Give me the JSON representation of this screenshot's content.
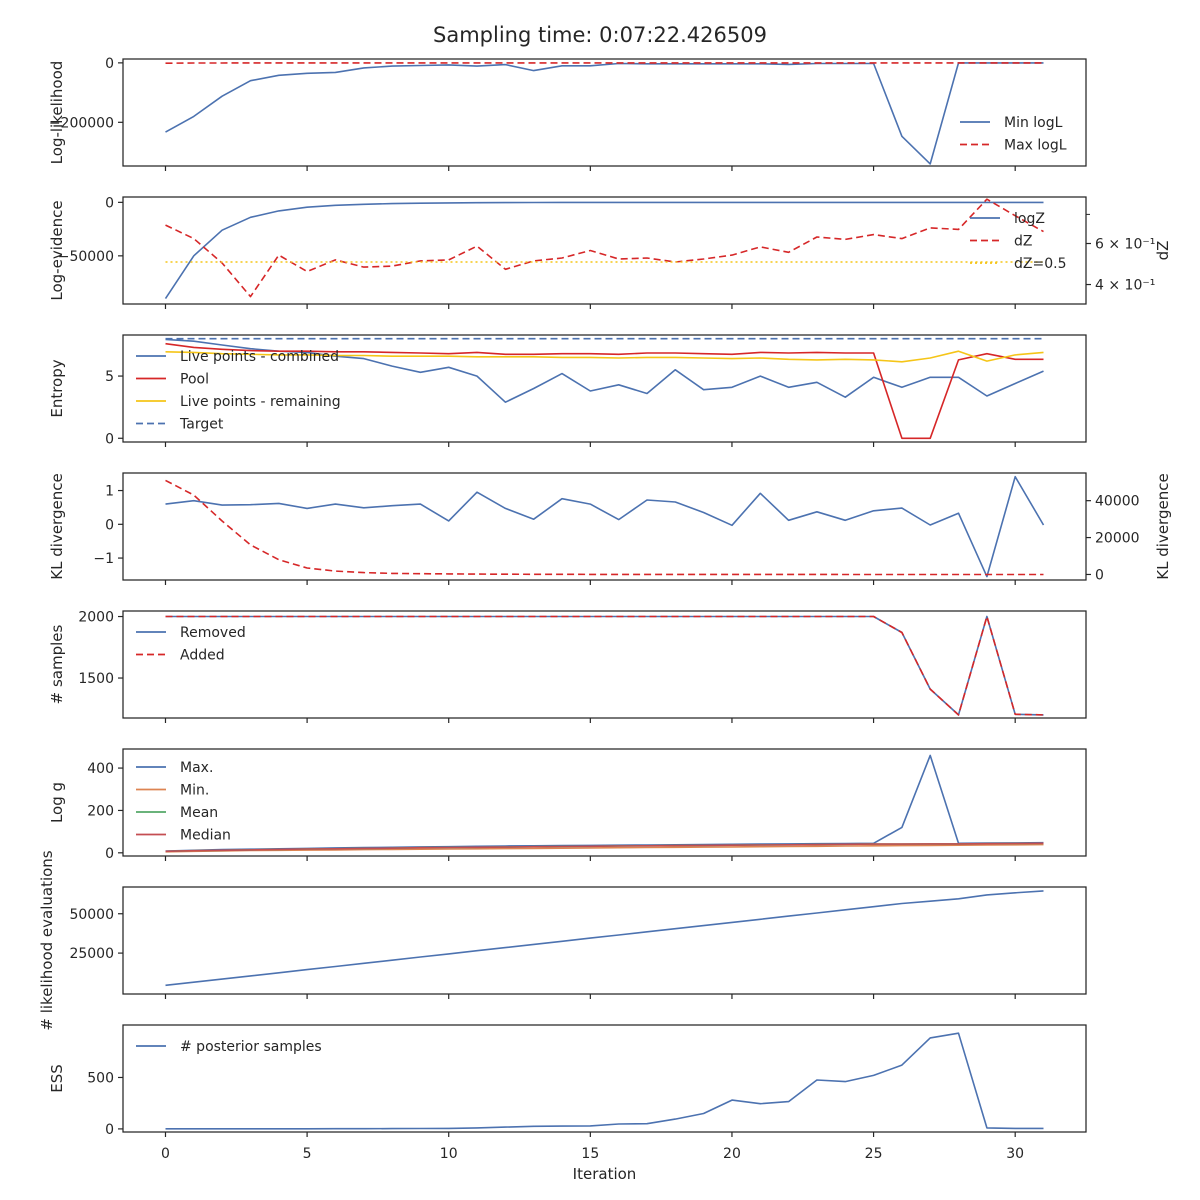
{
  "figure": {
    "title": "Sampling time: 0:07:22.426509",
    "xlabel": "Iteration"
  },
  "chart_data": [
    {
      "type": "line",
      "ylabel": "Log-likelihood",
      "ylim": [
        -347000,
        13000
      ],
      "yticks": [
        0,
        -200000
      ],
      "ytick_labels": [
        "0",
        "−200000"
      ],
      "legend_position": "lower-right",
      "x": [
        0,
        1,
        2,
        3,
        4,
        5,
        6,
        7,
        8,
        9,
        10,
        11,
        12,
        13,
        14,
        15,
        16,
        17,
        18,
        19,
        20,
        21,
        22,
        23,
        24,
        25,
        26,
        27,
        28,
        29,
        30,
        31
      ],
      "series": [
        {
          "name": "Min logL",
          "color": "#4c72b0",
          "dash": "solid",
          "values": [
            -233000,
            -180000,
            -112000,
            -60000,
            -42000,
            -35000,
            -32000,
            -17000,
            -11000,
            -9000,
            -7000,
            -11000,
            -6000,
            -26000,
            -10000,
            -10000,
            -2000,
            -3000,
            -3000,
            -3000,
            -3000,
            -3000,
            -5000,
            -2000,
            -2000,
            -2000,
            -247000,
            -340000,
            0,
            0,
            0,
            0
          ]
        },
        {
          "name": "Max logL",
          "color": "#d62728",
          "dash": "dashed",
          "values": [
            -1000,
            -500,
            -500,
            0,
            0,
            0,
            0,
            0,
            0,
            0,
            0,
            0,
            0,
            0,
            0,
            0,
            0,
            0,
            0,
            0,
            0,
            0,
            0,
            0,
            0,
            0,
            0,
            0,
            0,
            0,
            0,
            0
          ]
        }
      ]
    },
    {
      "type": "line",
      "ylabel": "Log-evidence",
      "ylabel_right": "dZ",
      "ylim": [
        -95000,
        5000
      ],
      "yticks": [
        0,
        -50000
      ],
      "ytick_labels": [
        "0",
        "−50000"
      ],
      "yscale_right": "log",
      "ylim_right": [
        0.33,
        0.95
      ],
      "yticks_right": [
        0.6,
        0.4
      ],
      "ytick_labels_right": [
        "6 × 10⁻¹",
        "4 × 10⁻¹"
      ],
      "legend_position": "upper-right",
      "x": [
        0,
        1,
        2,
        3,
        4,
        5,
        6,
        7,
        8,
        9,
        10,
        11,
        12,
        13,
        14,
        15,
        16,
        17,
        18,
        19,
        20,
        21,
        22,
        23,
        24,
        25,
        26,
        27,
        28,
        29,
        30,
        31
      ],
      "series": [
        {
          "name": "logZ",
          "axis": "left",
          "color": "#4c72b0",
          "dash": "solid",
          "values": [
            -90000,
            -50000,
            -26000,
            -14000,
            -8000,
            -4500,
            -2800,
            -1800,
            -1200,
            -800,
            -500,
            -300,
            -200,
            -100,
            -60,
            -40,
            -20,
            -10,
            0,
            0,
            0,
            0,
            0,
            0,
            0,
            0,
            0,
            0,
            0,
            0,
            0,
            0
          ]
        },
        {
          "name": "dZ",
          "axis": "right",
          "color": "#d62728",
          "dash": "dashed",
          "values": [
            0.72,
            0.63,
            0.495,
            0.355,
            0.535,
            0.455,
            0.51,
            0.475,
            0.48,
            0.505,
            0.51,
            0.585,
            0.465,
            0.505,
            0.52,
            0.56,
            0.515,
            0.52,
            0.5,
            0.515,
            0.535,
            0.58,
            0.55,
            0.64,
            0.625,
            0.655,
            0.63,
            0.7,
            0.69,
            0.93,
            0.79,
            0.675
          ]
        },
        {
          "name": "dZ=0.5",
          "axis": "right",
          "color": "#f5c518",
          "dash": "dotted",
          "values": [
            0.5,
            0.5,
            0.5,
            0.5,
            0.5,
            0.5,
            0.5,
            0.5,
            0.5,
            0.5,
            0.5,
            0.5,
            0.5,
            0.5,
            0.5,
            0.5,
            0.5,
            0.5,
            0.5,
            0.5,
            0.5,
            0.5,
            0.5,
            0.5,
            0.5,
            0.5,
            0.5,
            0.5,
            0.5,
            0.5,
            0.5,
            0.5
          ]
        }
      ]
    },
    {
      "type": "line",
      "ylabel": "Entropy",
      "ylim": [
        -0.3,
        8.3
      ],
      "yticks": [
        5,
        0
      ],
      "ytick_labels": [
        "5",
        "0"
      ],
      "legend_position": "upper-left",
      "x": [
        0,
        1,
        2,
        3,
        4,
        5,
        6,
        7,
        8,
        9,
        10,
        11,
        12,
        13,
        14,
        15,
        16,
        17,
        18,
        19,
        20,
        21,
        22,
        23,
        24,
        25,
        26,
        27,
        28,
        29,
        30,
        31
      ],
      "series": [
        {
          "name": "Live points - combined",
          "color": "#4c72b0",
          "dash": "solid",
          "values": [
            7.95,
            7.8,
            7.5,
            7.2,
            7.0,
            6.9,
            6.6,
            6.4,
            5.8,
            5.3,
            5.7,
            5.0,
            2.9,
            4.0,
            5.2,
            3.8,
            4.3,
            3.6,
            5.5,
            3.9,
            4.1,
            5.0,
            4.1,
            4.5,
            3.3,
            4.9,
            4.1,
            4.9,
            4.9,
            3.4,
            4.4,
            5.4
          ]
        },
        {
          "name": "Pool",
          "color": "#d62728",
          "dash": "solid",
          "values": [
            7.6,
            7.3,
            7.15,
            7.05,
            7.0,
            7.0,
            6.95,
            6.95,
            6.9,
            6.85,
            6.8,
            6.9,
            6.75,
            6.75,
            6.8,
            6.8,
            6.75,
            6.85,
            6.85,
            6.8,
            6.75,
            6.9,
            6.85,
            6.9,
            6.85,
            6.85,
            0.0,
            0.0,
            6.3,
            6.8,
            6.35,
            6.35
          ]
        },
        {
          "name": "Live points - remaining",
          "color": "#f5c518",
          "dash": "solid",
          "values": [
            6.95,
            6.9,
            6.8,
            6.75,
            6.7,
            6.7,
            6.65,
            6.65,
            6.6,
            6.6,
            6.6,
            6.55,
            6.55,
            6.55,
            6.5,
            6.5,
            6.45,
            6.5,
            6.5,
            6.45,
            6.4,
            6.45,
            6.35,
            6.3,
            6.35,
            6.3,
            6.15,
            6.45,
            7.0,
            6.2,
            6.7,
            6.9
          ]
        },
        {
          "name": "Target",
          "color": "#4c72b0",
          "dash": "dashed",
          "values": [
            8.0,
            8.0,
            8.0,
            8.0,
            8.0,
            8.0,
            8.0,
            8.0,
            8.0,
            8.0,
            8.0,
            8.0,
            8.0,
            8.0,
            8.0,
            8.0,
            8.0,
            8.0,
            8.0,
            8.0,
            8.0,
            8.0,
            8.0,
            8.0,
            8.0,
            8.0,
            8.0,
            8.0,
            8.0,
            8.0,
            8.0,
            8.0
          ]
        }
      ]
    },
    {
      "type": "line",
      "ylabel": "KL divergence",
      "ylabel_right": "KL divergence",
      "ylim": [
        -1.65,
        1.52
      ],
      "yticks": [
        1,
        0,
        -1
      ],
      "ytick_labels": [
        "1",
        "0",
        "−1"
      ],
      "ylim_right": [
        -3000,
        55000
      ],
      "yticks_right": [
        40000,
        20000,
        0
      ],
      "ytick_labels_right": [
        "40000",
        "20000",
        "0"
      ],
      "x": [
        0,
        1,
        2,
        3,
        4,
        5,
        6,
        7,
        8,
        9,
        10,
        11,
        12,
        13,
        14,
        15,
        16,
        17,
        18,
        19,
        20,
        21,
        22,
        23,
        24,
        25,
        26,
        27,
        28,
        29,
        30,
        31
      ],
      "series": [
        {
          "name": "",
          "axis": "left",
          "color": "#4c72b0",
          "dash": "solid",
          "values": [
            0.6,
            0.7,
            0.57,
            0.58,
            0.62,
            0.47,
            0.6,
            0.49,
            0.55,
            0.6,
            0.1,
            0.95,
            0.47,
            0.15,
            0.76,
            0.6,
            0.14,
            0.72,
            0.66,
            0.35,
            -0.03,
            0.92,
            0.12,
            0.37,
            0.12,
            0.4,
            0.48,
            -0.02,
            0.33,
            -1.55,
            1.41,
            -0.02
          ]
        },
        {
          "name": "",
          "axis": "right",
          "color": "#d62728",
          "dash": "dashed",
          "values": [
            51000,
            43000,
            29000,
            16000,
            8000,
            3500,
            1800,
            1000,
            600,
            400,
            300,
            200,
            150,
            100,
            80,
            60,
            50,
            40,
            30,
            25,
            20,
            15,
            10,
            10,
            5,
            5,
            5,
            5,
            5,
            5,
            5,
            5
          ]
        }
      ]
    },
    {
      "type": "line",
      "ylabel": "# samples",
      "ylim": [
        1175,
        2045
      ],
      "yticks": [
        2000,
        1500
      ],
      "ytick_labels": [
        "2000",
        "1500"
      ],
      "legend_position": "upper-left",
      "x": [
        0,
        1,
        2,
        3,
        4,
        5,
        6,
        7,
        8,
        9,
        10,
        11,
        12,
        13,
        14,
        15,
        16,
        17,
        18,
        19,
        20,
        21,
        22,
        23,
        24,
        25,
        26,
        27,
        28,
        29,
        30,
        31
      ],
      "series": [
        {
          "name": "Removed",
          "color": "#4c72b0",
          "dash": "solid",
          "values": [
            2000,
            2000,
            2000,
            2000,
            2000,
            2000,
            2000,
            2000,
            2000,
            2000,
            2000,
            2000,
            2000,
            2000,
            2000,
            2000,
            2000,
            2000,
            2000,
            2000,
            2000,
            2000,
            2000,
            2000,
            2000,
            2000,
            1870,
            1410,
            1200,
            2000,
            1205,
            1200
          ]
        },
        {
          "name": "Added",
          "color": "#d62728",
          "dash": "dashed",
          "values": [
            2000,
            2000,
            2000,
            2000,
            2000,
            2000,
            2000,
            2000,
            2000,
            2000,
            2000,
            2000,
            2000,
            2000,
            2000,
            2000,
            2000,
            2000,
            2000,
            2000,
            2000,
            2000,
            2000,
            2000,
            2000,
            2000,
            1870,
            1410,
            1200,
            2000,
            1205,
            1200
          ]
        }
      ]
    },
    {
      "type": "line",
      "ylabel": "Log g",
      "ylim": [
        -15,
        490
      ],
      "yticks": [
        400,
        200,
        0
      ],
      "ytick_labels": [
        "400",
        "200",
        "0"
      ],
      "legend_position": "upper-left",
      "x": [
        0,
        1,
        2,
        3,
        4,
        5,
        6,
        7,
        8,
        9,
        10,
        11,
        12,
        13,
        14,
        15,
        16,
        17,
        18,
        19,
        20,
        21,
        22,
        23,
        24,
        25,
        26,
        27,
        28,
        29,
        30,
        31
      ],
      "series": [
        {
          "name": "Max.",
          "color": "#4c72b0",
          "dash": "solid",
          "values": [
            8,
            12,
            15,
            17,
            19,
            21,
            23,
            25,
            26,
            28,
            29,
            31,
            32,
            33,
            34,
            35,
            36,
            37,
            38,
            39,
            40,
            41,
            42,
            43,
            44,
            45,
            120,
            460,
            45,
            46,
            47,
            48
          ]
        },
        {
          "name": "Min.",
          "color": "#dd8452",
          "dash": "solid",
          "values": [
            5,
            7,
            9,
            11,
            12,
            13,
            14,
            15,
            16,
            17,
            18,
            19,
            20,
            21,
            22,
            23,
            24,
            25,
            26,
            27,
            28,
            29,
            30,
            31,
            32,
            33,
            34,
            35,
            36,
            37,
            38,
            39
          ]
        },
        {
          "name": "Mean",
          "color": "#55a868",
          "dash": "solid",
          "values": [
            7,
            10,
            12,
            14,
            16,
            18,
            19,
            21,
            22,
            24,
            25,
            26,
            27,
            29,
            30,
            31,
            32,
            33,
            34,
            35,
            36,
            37,
            38,
            39,
            40,
            41,
            41,
            42,
            42,
            43,
            44,
            45
          ]
        },
        {
          "name": "Median",
          "color": "#c44e52",
          "dash": "solid",
          "values": [
            7,
            10,
            12,
            14,
            16,
            18,
            19,
            21,
            22,
            24,
            25,
            26,
            27,
            29,
            30,
            31,
            32,
            33,
            34,
            35,
            36,
            37,
            38,
            39,
            40,
            41,
            41,
            42,
            42,
            43,
            44,
            45
          ]
        }
      ]
    },
    {
      "type": "line",
      "ylabel": "# likelihood evaluations",
      "ylim": [
        -1000,
        67000
      ],
      "yticks": [
        50000,
        25000
      ],
      "ytick_labels": [
        "50000",
        "25000"
      ],
      "x": [
        0,
        1,
        2,
        3,
        4,
        5,
        6,
        7,
        8,
        9,
        10,
        11,
        12,
        13,
        14,
        15,
        16,
        17,
        18,
        19,
        20,
        21,
        22,
        23,
        24,
        25,
        26,
        27,
        28,
        29,
        30,
        31
      ],
      "series": [
        {
          "name": "",
          "color": "#4c72b0",
          "dash": "solid",
          "values": [
            4500,
            6500,
            8500,
            10500,
            12500,
            14500,
            16500,
            18500,
            20500,
            22500,
            24500,
            26500,
            28500,
            30500,
            32500,
            34500,
            36500,
            38500,
            40500,
            42500,
            44500,
            46500,
            48500,
            50500,
            52500,
            54500,
            56500,
            58000,
            59500,
            62000,
            63300,
            64500
          ]
        }
      ]
    },
    {
      "type": "line",
      "ylabel": "ESS",
      "ylim": [
        -30,
        1010
      ],
      "yticks": [
        500,
        0
      ],
      "ytick_labels": [
        "500",
        "0"
      ],
      "legend_position": "upper-left",
      "xticks": [
        0,
        5,
        10,
        15,
        20,
        25,
        30
      ],
      "xtick_labels": [
        "0",
        "5",
        "10",
        "15",
        "20",
        "25",
        "30"
      ],
      "x": [
        0,
        1,
        2,
        3,
        4,
        5,
        6,
        7,
        8,
        9,
        10,
        11,
        12,
        13,
        14,
        15,
        16,
        17,
        18,
        19,
        20,
        21,
        22,
        23,
        24,
        25,
        26,
        27,
        28,
        29,
        30,
        31
      ],
      "series": [
        {
          "name": "# posterior samples",
          "color": "#4c72b0",
          "dash": "solid",
          "values": [
            1,
            1,
            1,
            1,
            1,
            1,
            2,
            2,
            3,
            4,
            5,
            10,
            18,
            25,
            27,
            29,
            48,
            51,
            95,
            150,
            280,
            245,
            265,
            475,
            460,
            520,
            620,
            885,
            930,
            10,
            5,
            5
          ]
        }
      ]
    }
  ]
}
